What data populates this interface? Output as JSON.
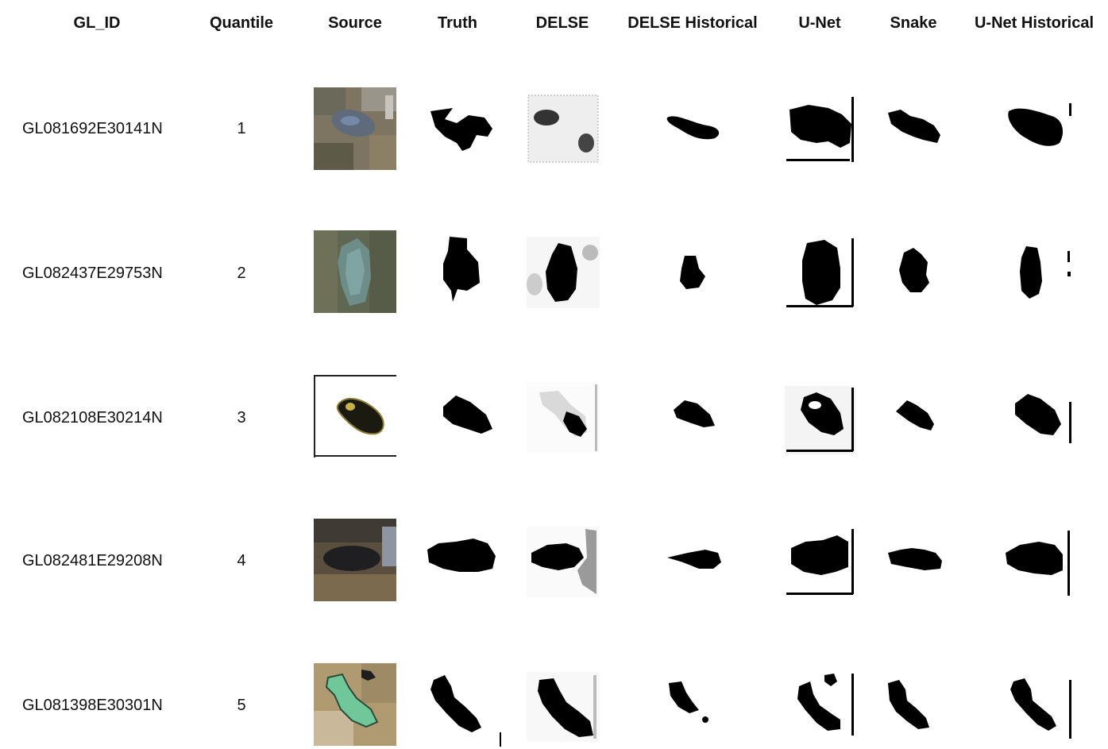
{
  "header": {
    "columns": [
      "GL_ID",
      "Quantile",
      "Source",
      "Truth",
      "DELSE",
      "DELSE Historical",
      "U-Net",
      "Snake",
      "U-Net Historical"
    ]
  },
  "rows": [
    {
      "gl_id": "GL081692E30141N",
      "quantile": "1"
    },
    {
      "gl_id": "GL082437E29753N",
      "quantile": "2"
    },
    {
      "gl_id": "GL082108E30214N",
      "quantile": "3"
    },
    {
      "gl_id": "GL082481E29208N",
      "quantile": "4"
    },
    {
      "gl_id": "GL081398E30301N",
      "quantile": "5"
    }
  ],
  "colors": {
    "mask": "#000000",
    "background": "#ffffff",
    "source_tones": [
      "#7d7561",
      "#5f6651",
      "#f4f4f4",
      "#4a4538",
      "#b09a72"
    ]
  }
}
